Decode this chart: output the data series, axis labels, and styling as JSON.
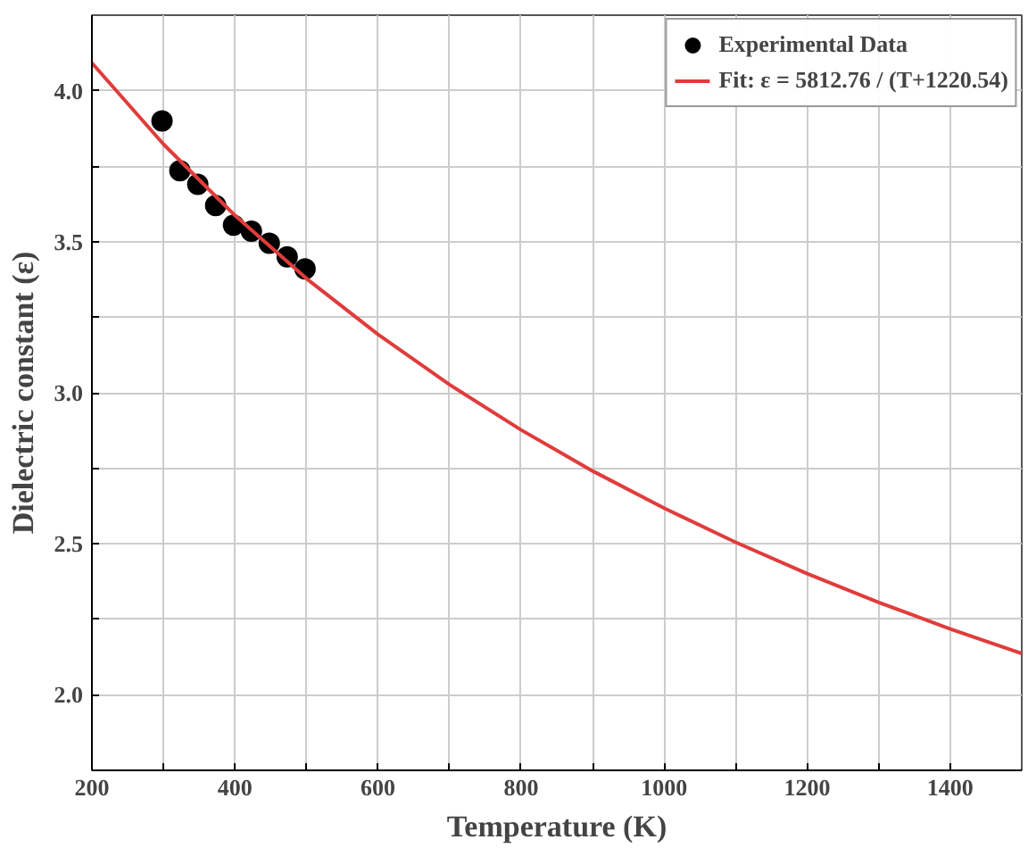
{
  "chart_data": {
    "type": "scatter",
    "xlabel": "Temperature (K)",
    "ylabel": "Dielectric constant (ε)",
    "xlim": [
      200,
      1500
    ],
    "ylim": [
      1.75,
      4.25
    ],
    "xticks": [
      200,
      {
        "value": 300,
        "label": null
      },
      400,
      {
        "value": 500,
        "label": null
      },
      600,
      {
        "value": 700,
        "label": null
      },
      800,
      {
        "value": 900,
        "label": null
      },
      1000,
      {
        "value": 1100,
        "label": null
      },
      1200,
      {
        "value": 1300,
        "label": null
      },
      1400
    ],
    "yticks": [
      {
        "value": 2,
        "label": "2.0"
      },
      {
        "value": 2.25,
        "label": null
      },
      2.5,
      {
        "value": 2.75,
        "label": null
      },
      {
        "value": 3,
        "label": "3.0"
      },
      {
        "value": 3.25,
        "label": null
      },
      3.5,
      {
        "value": 3.75,
        "label": null
      },
      {
        "value": 4,
        "label": "4.0"
      }
    ],
    "grid": true,
    "legend": "top right",
    "series": [
      {
        "name": "Experimental Data",
        "marker": "circle",
        "color": "#000000",
        "x": [
          298,
          323,
          348,
          373,
          398,
          423,
          448,
          473,
          498
        ],
        "values": [
          3.9,
          3.735,
          3.69,
          3.62,
          3.555,
          3.535,
          3.495,
          3.45,
          3.41
        ]
      },
      {
        "name": "Fit: ε = 5812.76 / (T+1220.54)",
        "type": "line",
        "marker": "none",
        "line_style": "solid",
        "color": "#e03c3c",
        "x": [
          200,
          300,
          400,
          500,
          600,
          700,
          800,
          900,
          1000,
          1100,
          1200,
          1300,
          1400,
          1500
        ],
        "values": [
          4.092,
          3.823,
          3.587,
          3.378,
          3.193,
          3.027,
          2.877,
          2.741,
          2.618,
          2.505,
          2.401,
          2.306,
          2.218,
          2.137
        ]
      }
    ]
  }
}
